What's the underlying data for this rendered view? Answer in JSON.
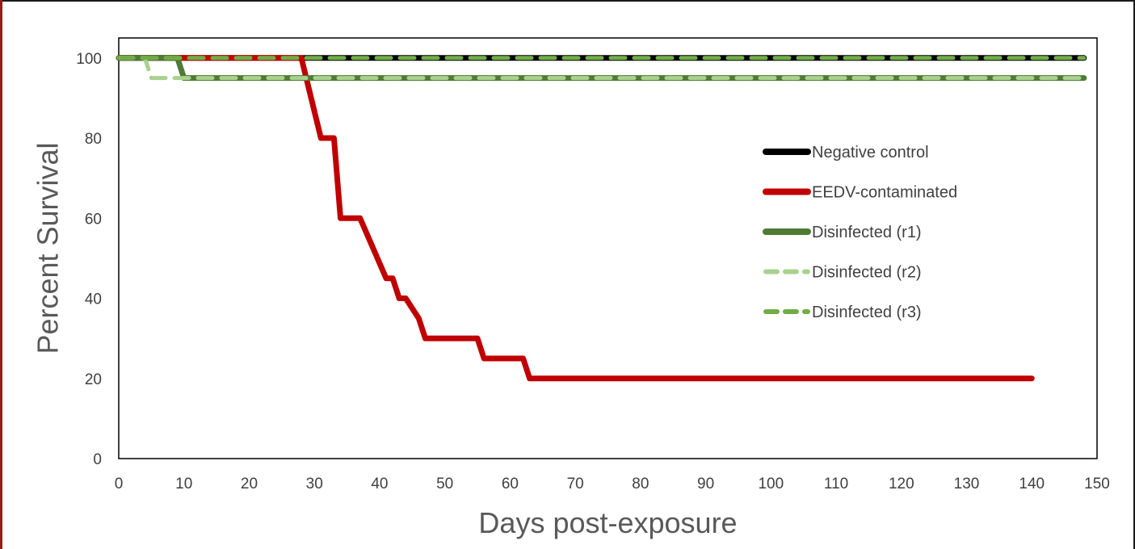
{
  "chart_data": {
    "type": "line",
    "title": "",
    "xlabel": "Days post-exposure",
    "ylabel": "Percent Survival",
    "xlim": [
      0,
      150
    ],
    "ylim": [
      0,
      105
    ],
    "xticks": [
      0,
      10,
      20,
      30,
      40,
      50,
      60,
      70,
      80,
      90,
      100,
      110,
      120,
      130,
      140,
      150
    ],
    "yticks": [
      0,
      20,
      40,
      60,
      80,
      100
    ],
    "grid": false,
    "legend_position": "right",
    "series": [
      {
        "name": "Negative control",
        "color": "#000000",
        "dash": "solid",
        "x": [
          0,
          148
        ],
        "y": [
          100,
          100
        ]
      },
      {
        "name": "EEDV-contaminated",
        "color": "#c00000",
        "dash": "solid",
        "x": [
          0,
          28,
          31,
          33,
          34,
          37,
          41,
          42,
          43,
          44,
          46,
          47,
          55,
          56,
          62,
          63,
          140
        ],
        "y": [
          100,
          100,
          80,
          80,
          60,
          60,
          45,
          45,
          40,
          40,
          35,
          30,
          30,
          25,
          25,
          20,
          20
        ]
      },
      {
        "name": "Disinfected (r1)",
        "color": "#4f7a35",
        "dash": "solid",
        "x": [
          0,
          9,
          10,
          148
        ],
        "y": [
          100,
          100,
          95,
          95
        ]
      },
      {
        "name": "Disinfected (r2)",
        "color": "#a9d18e",
        "dash": "dash",
        "x": [
          0,
          4,
          5,
          148
        ],
        "y": [
          100,
          100,
          95,
          95
        ]
      },
      {
        "name": "Disinfected (r3)",
        "color": "#70ad47",
        "dash": "dash",
        "x": [
          0,
          148
        ],
        "y": [
          100,
          100
        ]
      }
    ]
  }
}
